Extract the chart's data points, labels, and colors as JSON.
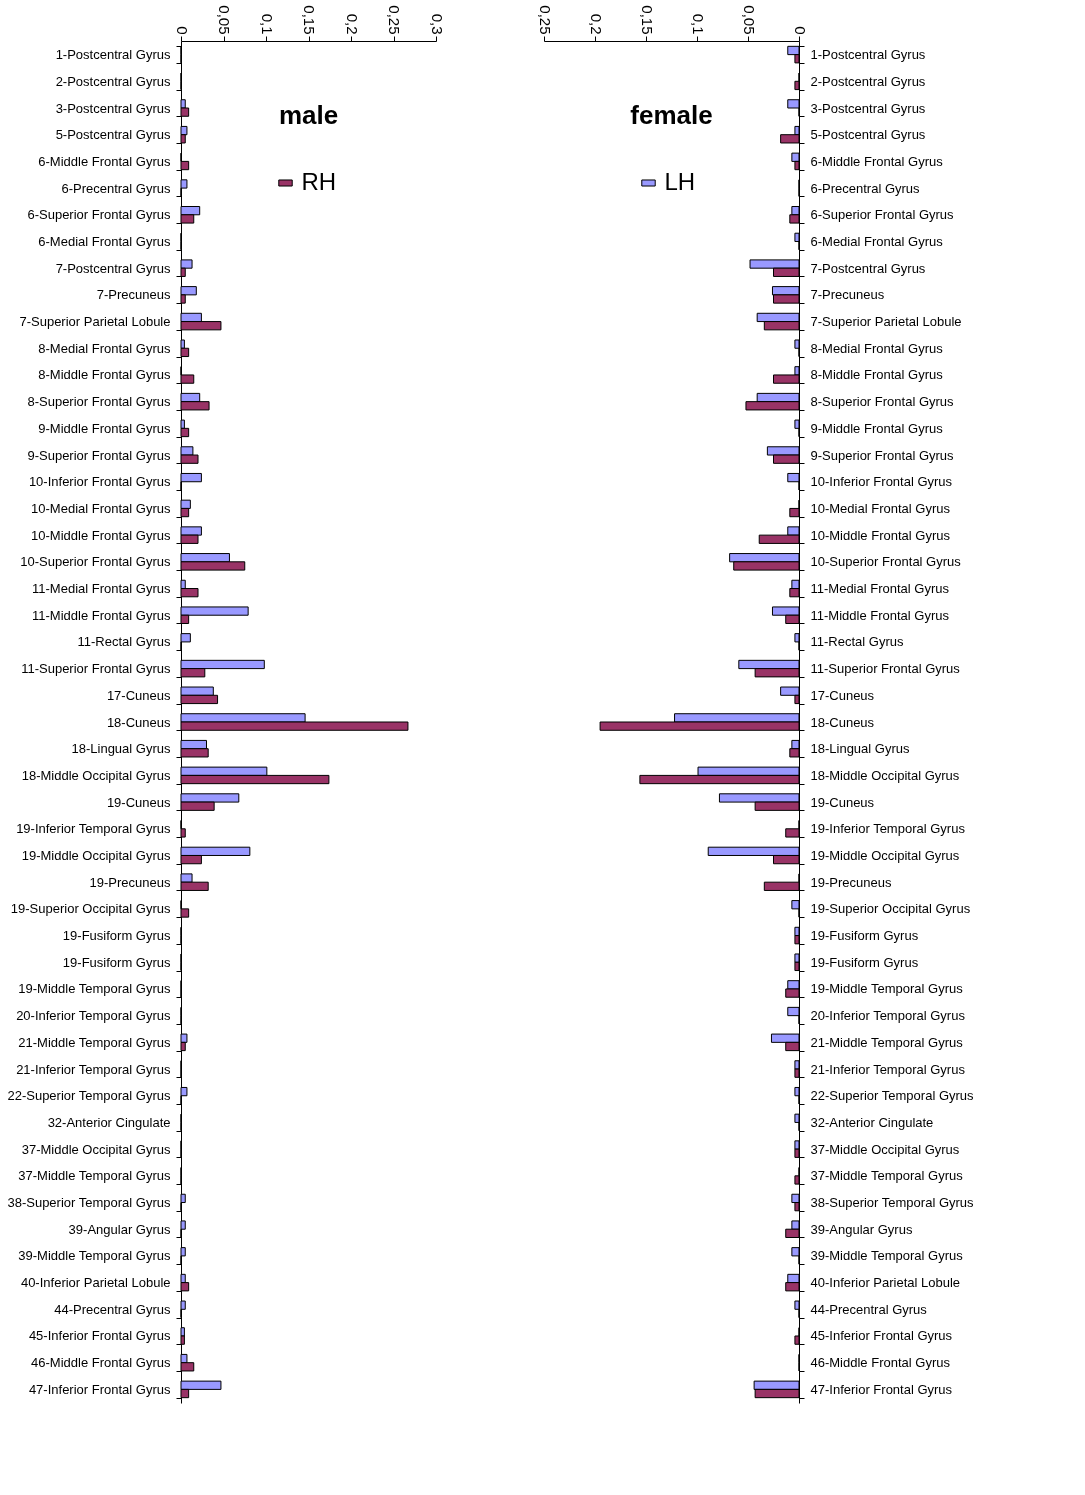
{
  "chart_data": [
    {
      "type": "bar",
      "orientation": "horizontal",
      "title": "male",
      "categories": [
        "1-Postcentral Gyrus",
        "2-Postcentral Gyrus",
        "3-Postcentral Gyrus",
        "5-Postcentral Gyrus",
        "6-Middle Frontal Gyrus",
        "6-Precentral Gyrus",
        "6-Superior Frontal Gyrus",
        "6-Medial Frontal Gyrus",
        "7-Postcentral Gyrus",
        "7-Precuneus",
        "7-Superior Parietal Lobule",
        "8-Medial Frontal Gyrus",
        "8-Middle Frontal Gyrus",
        "8-Superior Frontal Gyrus",
        "9-Middle Frontal Gyrus",
        "9-Superior Frontal Gyrus",
        "10-Inferior Frontal Gyrus",
        "10-Medial Frontal Gyrus",
        "10-Middle Frontal Gyrus",
        "10-Superior Frontal Gyrus",
        "11-Medial Frontal Gyrus",
        "11-Middle Frontal Gyrus",
        "11-Rectal Gyrus",
        "11-Superior Frontal Gyrus",
        "17-Cuneus",
        "18-Cuneus",
        "18-Lingual Gyrus",
        "18-Middle Occipital Gyrus",
        "19-Cuneus",
        "19-Inferior Temporal Gyrus",
        "19-Middle Occipital Gyrus",
        "19-Precuneus",
        "19-Superior Occipital Gyrus",
        "19-Fusiform Gyrus",
        "19-Fusiform Gyrus",
        "19-Middle Temporal Gyrus",
        "20-Inferior Temporal Gyrus",
        "21-Middle Temporal Gyrus",
        "21-Inferior Temporal Gyrus",
        "22-Superior Temporal Gyrus",
        "32-Anterior Cingulate",
        "37-Middle Occipital Gyrus",
        "37-Middle Temporal Gyrus",
        "38-Superior Temporal Gyrus",
        "39-Angular Gyrus",
        "39-Middle Temporal Gyrus",
        "40-Inferior Parietal Lobule",
        "44-Precentral Gyrus",
        "45-Inferior Frontal Gyrus",
        "46-Middle Frontal Gyrus",
        "47-Inferior Frontal Gyrus"
      ],
      "series": [
        {
          "color": "#9999ff",
          "values": [
            0,
            0,
            0.005,
            0.007,
            0,
            0.007,
            0.022,
            0,
            0.013,
            0.018,
            0.024,
            0.004,
            0,
            0.022,
            0.004,
            0.014,
            0.024,
            0.011,
            0.024,
            0.057,
            0.005,
            0.079,
            0.011,
            0.098,
            0.038,
            0.146,
            0.03,
            0.101,
            0.068,
            0,
            0.081,
            0.013,
            0,
            0,
            0,
            0,
            0,
            0.007,
            0,
            0.007,
            0,
            0,
            0,
            0.005,
            0.005,
            0.005,
            0.005,
            0.005,
            0.004,
            0.007,
            0.047
          ]
        },
        {
          "name": "RH",
          "color": "#993366",
          "values": [
            0,
            0,
            0.009,
            0.005,
            0.009,
            0,
            0.015,
            0,
            0.005,
            0.005,
            0.047,
            0.009,
            0.015,
            0.033,
            0.009,
            0.02,
            0,
            0.009,
            0.02,
            0.075,
            0.02,
            0.009,
            0,
            0.028,
            0.043,
            0.267,
            0.032,
            0.174,
            0.039,
            0.005,
            0.024,
            0.032,
            0.009,
            0,
            0,
            0,
            0,
            0.005,
            0,
            0,
            0,
            0,
            0,
            0,
            0,
            0,
            0.009,
            0,
            0.004,
            0.015,
            0.009
          ]
        }
      ],
      "xlim": [
        0,
        0.3
      ],
      "xticks": [
        0,
        {
          "value": 0.05,
          "label": "0,05"
        },
        {
          "value": 0.1,
          "label": "0,1"
        },
        {
          "value": 0.15,
          "label": "0,15"
        },
        {
          "value": 0.2,
          "label": "0,2"
        },
        {
          "value": 0.25,
          "label": "0,25"
        },
        {
          "value": 0.3,
          "label": "0,3"
        }
      ],
      "grid": false,
      "legend": "top"
    },
    {
      "type": "bar",
      "orientation": "horizontal",
      "title": "female",
      "categories": [
        "1-Postcentral Gyrus",
        "2-Postcentral Gyrus",
        "3-Postcentral Gyrus",
        "5-Postcentral Gyrus",
        "6-Middle Frontal Gyrus",
        "6-Precentral Gyrus",
        "6-Superior Frontal Gyrus",
        "6-Medial Frontal Gyrus",
        "7-Postcentral Gyrus",
        "7-Precuneus",
        "7-Superior Parietal Lobule",
        "8-Medial Frontal Gyrus",
        "8-Middle Frontal Gyrus",
        "8-Superior Frontal Gyrus",
        "9-Middle Frontal Gyrus",
        "9-Superior Frontal Gyrus",
        "10-Inferior Frontal Gyrus",
        "10-Medial Frontal Gyrus",
        "10-Middle Frontal Gyrus",
        "10-Superior Frontal Gyrus",
        "11-Medial Frontal Gyrus",
        "11-Middle Frontal Gyrus",
        "11-Rectal Gyrus",
        "11-Superior Frontal Gyrus",
        "17-Cuneus",
        "18-Cuneus",
        "18-Lingual Gyrus",
        "18-Middle Occipital Gyrus",
        "19-Cuneus",
        "19-Inferior Temporal Gyrus",
        "19-Middle Occipital Gyrus",
        "19-Precuneus",
        "19-Superior Occipital Gyrus",
        "19-Fusiform Gyrus",
        "19-Fusiform Gyrus",
        "19-Middle Temporal Gyrus",
        "20-Inferior Temporal Gyrus",
        "21-Middle Temporal Gyrus",
        "21-Inferior Temporal Gyrus",
        "22-Superior Temporal Gyrus",
        "32-Anterior Cingulate",
        "37-Middle Occipital Gyrus",
        "37-Middle Temporal Gyrus",
        "38-Superior Temporal Gyrus",
        "39-Angular Gyrus",
        "39-Middle Temporal Gyrus",
        "40-Inferior Parietal Lobule",
        "44-Precentral Gyrus",
        "45-Inferior Frontal Gyrus",
        "46-Middle Frontal Gyrus",
        "47-Inferior Frontal Gyrus"
      ],
      "series": [
        {
          "name": "LH",
          "color": "#9999ff",
          "values": [
            0.011,
            0,
            0.011,
            0.004,
            0.007,
            0,
            0.007,
            0.004,
            0.048,
            0.026,
            0.041,
            0.004,
            0.004,
            0.041,
            0.004,
            0.031,
            0.011,
            0,
            0.011,
            0.068,
            0.007,
            0.026,
            0.004,
            0.059,
            0.018,
            0.122,
            0.007,
            0.099,
            0.078,
            0,
            0.089,
            0,
            0.007,
            0.004,
            0.004,
            0.011,
            0.011,
            0.027,
            0.004,
            0.004,
            0.004,
            0.004,
            0,
            0.007,
            0.007,
            0.007,
            0.011,
            0.004,
            0,
            0,
            0.044
          ]
        },
        {
          "color": "#993366",
          "values": [
            0.004,
            0.004,
            0,
            0.018,
            0.004,
            0,
            0.009,
            0,
            0.025,
            0.025,
            0.034,
            0,
            0.025,
            0.052,
            0,
            0.025,
            0,
            0.009,
            0.039,
            0.064,
            0.009,
            0.013,
            0,
            0.043,
            0.004,
            0.195,
            0.009,
            0.156,
            0.043,
            0.013,
            0.025,
            0.034,
            0,
            0.004,
            0.004,
            0.013,
            0,
            0.013,
            0.004,
            0,
            0,
            0.004,
            0.004,
            0.004,
            0.013,
            0,
            0.013,
            0,
            0.004,
            0,
            0.043
          ]
        }
      ],
      "xlim": [
        0.25,
        0
      ],
      "xticks": [
        {
          "value": 0.25,
          "label": "0,25"
        },
        {
          "value": 0.2,
          "label": "0,2"
        },
        {
          "value": 0.15,
          "label": "0,15"
        },
        {
          "value": 0.1,
          "label": "0,1"
        },
        {
          "value": 0.05,
          "label": "0,05"
        },
        0
      ],
      "grid": false,
      "legend": "top"
    }
  ]
}
